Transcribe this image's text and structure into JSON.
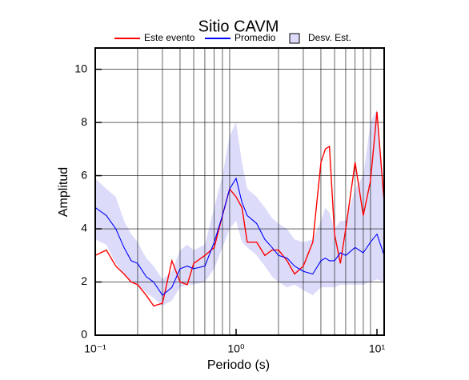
{
  "chart_data": {
    "type": "line",
    "title": "Sitio CAVM",
    "x_label": "Periodo (s)",
    "y_label": "Amplitud",
    "xlog": true,
    "grid": true,
    "xlim": [
      0.1,
      11.25
    ],
    "ylim": [
      0,
      10.8
    ],
    "xticks": [
      {
        "value": 0.1,
        "label": "10⁻¹"
      },
      {
        "value": 1,
        "label": "10⁰"
      },
      {
        "value": 10,
        "label": "10¹"
      }
    ],
    "yticks": [
      0,
      2,
      4,
      6,
      8,
      10
    ],
    "xgrid": [
      0.2,
      0.3,
      0.4,
      0.5,
      0.6,
      0.7,
      0.8,
      0.9,
      2,
      3,
      4,
      5,
      6,
      7,
      8,
      9
    ],
    "ygrid": [
      2,
      4,
      6,
      8,
      10
    ],
    "x": [
      0.1,
      0.12,
      0.14,
      0.16,
      0.18,
      0.2,
      0.23,
      0.26,
      0.3,
      0.35,
      0.4,
      0.45,
      0.5,
      0.6,
      0.7,
      0.8,
      0.9,
      1.0,
      1.1,
      1.2,
      1.4,
      1.6,
      1.8,
      2.0,
      2.3,
      2.6,
      3.0,
      3.5,
      4.0,
      4.3,
      4.6,
      5.0,
      5.5,
      6.0,
      7.0,
      8.0,
      9.0,
      10.0,
      11.25
    ],
    "series": [
      {
        "name": "Este evento",
        "color": "#ff0000",
        "values": [
          3.0,
          3.2,
          2.6,
          2.3,
          2.0,
          1.9,
          1.5,
          1.1,
          1.2,
          2.8,
          2.0,
          1.9,
          2.7,
          3.0,
          3.3,
          4.5,
          5.5,
          5.2,
          4.8,
          3.5,
          3.5,
          3.0,
          3.2,
          3.2,
          2.8,
          2.3,
          2.6,
          3.5,
          6.5,
          7.0,
          7.1,
          3.8,
          2.7,
          4.0,
          6.5,
          4.5,
          5.8,
          8.4,
          5.0
        ]
      },
      {
        "name": "Promedio",
        "color": "#0000ff",
        "values": [
          4.8,
          4.5,
          4.0,
          3.3,
          2.8,
          2.7,
          2.2,
          2.0,
          1.5,
          1.8,
          2.5,
          2.6,
          2.5,
          2.6,
          3.5,
          4.5,
          5.5,
          5.9,
          5.0,
          4.5,
          4.2,
          3.6,
          3.3,
          3.0,
          2.9,
          2.6,
          2.4,
          2.3,
          2.8,
          2.9,
          2.8,
          2.8,
          3.1,
          3.0,
          3.3,
          3.1,
          3.5,
          3.8,
          3.0
        ]
      },
      {
        "name": "Desv. Est.",
        "color": "#dcdcfa",
        "lower": [
          3.6,
          3.4,
          2.7,
          2.3,
          2.0,
          1.9,
          1.6,
          1.4,
          1.1,
          1.3,
          1.8,
          1.9,
          1.9,
          2.0,
          2.5,
          3.3,
          4.0,
          4.3,
          3.5,
          3.3,
          3.0,
          2.6,
          2.2,
          2.0,
          1.8,
          1.9,
          1.7,
          1.5,
          1.8,
          1.8,
          1.8,
          1.8,
          1.9,
          1.9,
          1.9,
          1.9,
          2.0,
          2.1,
          2.0
        ],
        "upper": [
          5.9,
          5.5,
          5.2,
          4.3,
          3.8,
          3.5,
          2.9,
          2.6,
          2.1,
          2.4,
          3.2,
          3.4,
          3.2,
          3.4,
          4.8,
          6.0,
          7.5,
          8.0,
          6.5,
          5.5,
          5.2,
          4.8,
          4.4,
          4.2,
          4.0,
          3.6,
          3.5,
          3.6,
          4.3,
          4.8,
          4.6,
          4.0,
          4.3,
          4.3,
          5.5,
          6.0,
          8.0,
          8.5,
          5.0
        ]
      }
    ]
  }
}
